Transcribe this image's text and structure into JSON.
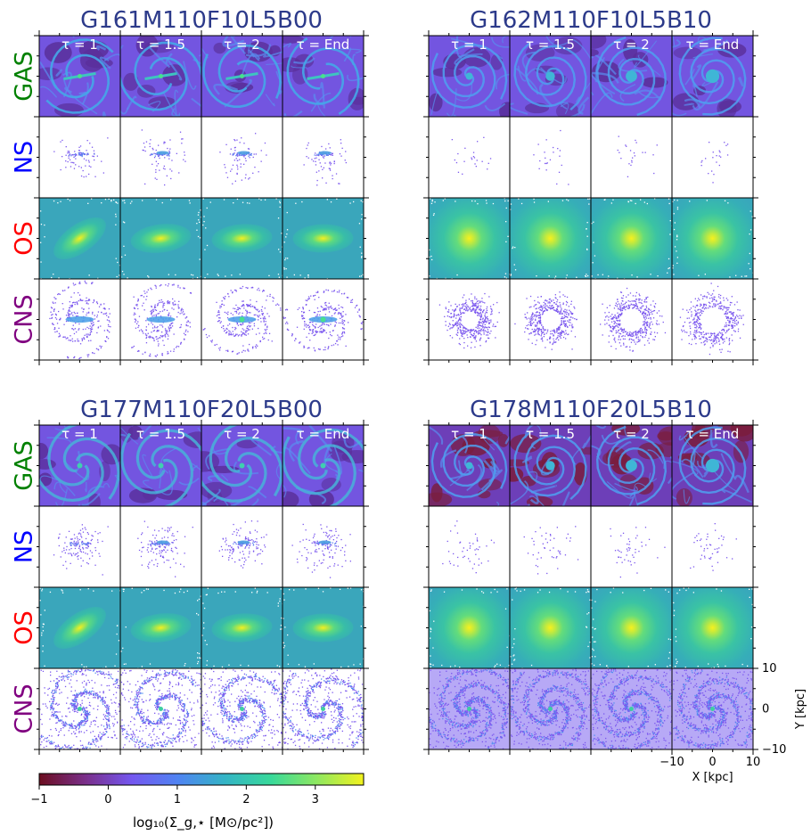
{
  "chart_data": {
    "type": "heatmap",
    "panels": [
      {
        "title": "G161M110F10L5B00",
        "gas_style": "bar-spiral",
        "ns_style": "sparse-bar",
        "os_style": "bar",
        "cns_style": "bar-spiral",
        "gas_tone": "mid"
      },
      {
        "title": "G162M110F10L5B10",
        "gas_style": "spiral",
        "ns_style": "very-sparse",
        "os_style": "round",
        "cns_style": "ring",
        "gas_tone": "mid"
      },
      {
        "title": "G177M110F20L5B00",
        "gas_style": "arms",
        "ns_style": "clumpy-bar",
        "os_style": "bar",
        "cns_style": "arms",
        "gas_tone": "mid"
      },
      {
        "title": "G178M110F20L5B10",
        "gas_style": "spiral",
        "ns_style": "sparse",
        "os_style": "round",
        "cns_style": "spiral",
        "gas_tone": "dark"
      }
    ],
    "rows": [
      {
        "label": "GAS",
        "color": "#008000"
      },
      {
        "label": "NS",
        "color": "#0000ff"
      },
      {
        "label": "OS",
        "color": "#ff0000"
      },
      {
        "label": "CNS",
        "color": "#800080"
      }
    ],
    "columns": [
      "τ = 1",
      "τ = 1.5",
      "τ = 2",
      "τ = End"
    ],
    "xlabel": "X [kpc]",
    "ylabel": "Y [kpc]",
    "xlim": [
      -10,
      10
    ],
    "ylim": [
      -10,
      10
    ],
    "x_ticks": [
      "−10",
      "0",
      "10"
    ],
    "y_ticks": [
      "10",
      "0",
      "−10"
    ],
    "colorbar": {
      "label": "log₁₀(Σ_g,⋆  [M⊙/pc²])",
      "range": [
        -1,
        3.7
      ],
      "ticks": [
        "−1",
        "0",
        "1",
        "2",
        "3"
      ],
      "tick_values": [
        -1,
        0,
        1,
        2,
        3
      ],
      "colormap": [
        "#6b0d1f",
        "#7a2f8a",
        "#7457f0",
        "#4f84f2",
        "#34b4c6",
        "#38d99a",
        "#8fe860",
        "#f2f21e"
      ]
    }
  }
}
